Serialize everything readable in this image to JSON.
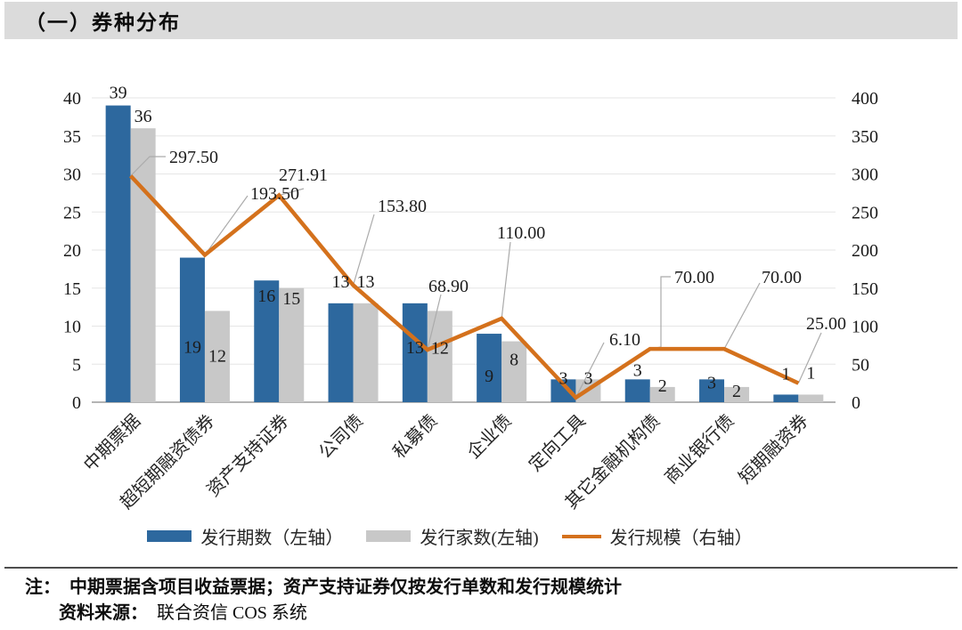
{
  "header": {
    "title": "（一）券种分布"
  },
  "chart_data": {
    "type": "bar+line",
    "title": "",
    "xlabel": "",
    "ylabel": "",
    "categories": [
      "中期票据",
      "超短期融资债券",
      "资产支持证券",
      "公司债",
      "私募债",
      "企业债",
      "定向工具",
      "其它金融机构债",
      "商业银行债",
      "短期融资券"
    ],
    "series": [
      {
        "name": "发行期数（左轴）",
        "type": "bar",
        "axis": "left",
        "color": "#2D689E",
        "values": [
          39,
          19,
          16,
          13,
          13,
          9,
          3,
          3,
          3,
          1
        ]
      },
      {
        "name": "发行家数(左轴)",
        "type": "bar",
        "axis": "left",
        "color": "#C8C8C8",
        "values": [
          36,
          12,
          15,
          13,
          12,
          8,
          3,
          2,
          2,
          1
        ]
      },
      {
        "name": "发行规模（右轴）",
        "type": "line",
        "axis": "right",
        "color": "#D4711C",
        "values": [
          297.5,
          193.5,
          271.91,
          153.8,
          68.9,
          110.0,
          6.1,
          70.0,
          70.0,
          25.0
        ],
        "display_labels": [
          "297.50",
          "193.50",
          "271.91",
          "153.80",
          "68.90",
          "110.00",
          "6.10",
          "70.00",
          "70.00",
          "25.00"
        ]
      }
    ],
    "left_axis": {
      "min": 0,
      "max": 40,
      "step": 5,
      "ticks": [
        0,
        5,
        10,
        15,
        20,
        25,
        30,
        35,
        40
      ]
    },
    "right_axis": {
      "min": 0,
      "max": 400,
      "step": 50,
      "ticks": [
        0,
        50,
        100,
        150,
        200,
        250,
        300,
        350,
        400
      ]
    },
    "grid": true,
    "legend_position": "bottom"
  },
  "notes": {
    "note_label": "注：",
    "note_text": "中期票据含项目收益票据；资产支持证券仅按发行单数和发行规模统计",
    "source_label": "资料来源：",
    "source_text": "联合资信 COS 系统"
  }
}
